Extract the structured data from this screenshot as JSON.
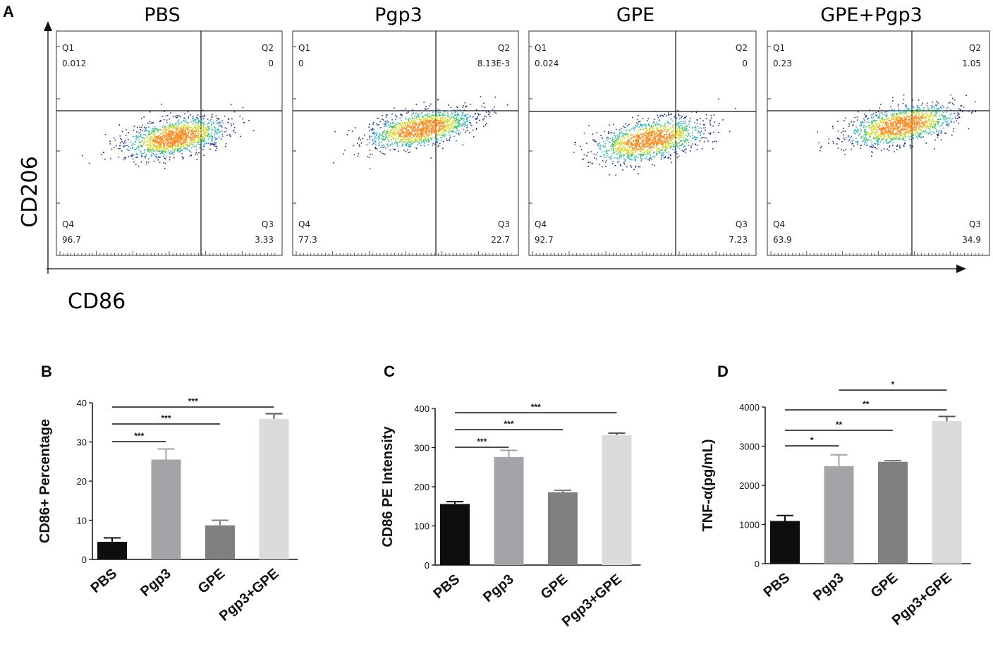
{
  "panel_a": {
    "label": "A",
    "y_axis_label": "CD206",
    "x_axis_label": "CD86",
    "plots": [
      {
        "title": "PBS",
        "q1_label": "Q1",
        "q1": "0.012",
        "q2_label": "Q2",
        "q2": "0",
        "q3_label": "Q3",
        "q3": "3.33",
        "q4_label": "Q4",
        "q4": "96.7"
      },
      {
        "title": "Pgp3",
        "q1_label": "Q1",
        "q1": "0",
        "q2_label": "Q2",
        "q2": "8.13E-3",
        "q3_label": "Q3",
        "q3": "22.7",
        "q4_label": "Q4",
        "q4": "77.3"
      },
      {
        "title": "GPE",
        "q1_label": "Q1",
        "q1": "0.024",
        "q2_label": "Q2",
        "q2": "0",
        "q3_label": "Q3",
        "q3": "7.23",
        "q4_label": "Q4",
        "q4": "92.7"
      },
      {
        "title": "GPE+Pgp3",
        "q1_label": "Q1",
        "q1": "0.23",
        "q2_label": "Q2",
        "q2": "1.05",
        "q3_label": "Q3",
        "q3": "34.9",
        "q4_label": "Q4",
        "q4": "63.9"
      }
    ]
  },
  "colors": {
    "bar_PBS": "#0d0f0f",
    "bar_Pgp3": "#a3a3a8",
    "bar_GPE": "#808080",
    "bar_Pgp3GPE": "#dbdbdb",
    "density": [
      "#1d2a8f",
      "#2f6fd1",
      "#2bb5c9",
      "#35c46a",
      "#d7d92b",
      "#ff8a1c",
      "#e3281a"
    ]
  },
  "chart_data": [
    {
      "panel": "B",
      "type": "bar",
      "title": "",
      "xlabel": "",
      "ylabel": "CD86+ Percentage",
      "categories": [
        "PBS",
        "Pgp3",
        "GPE",
        "Pgp3+GPE"
      ],
      "values": [
        4.5,
        25.5,
        8.7,
        35.9
      ],
      "errors": [
        1.0,
        2.7,
        1.3,
        1.3
      ],
      "ylim": [
        0,
        40
      ],
      "yticks": [
        0,
        10,
        20,
        30,
        40
      ],
      "significance": [
        {
          "from": 0,
          "to": 1,
          "label": "***"
        },
        {
          "from": 0,
          "to": 2,
          "label": "***"
        },
        {
          "from": 0,
          "to": 3,
          "label": "***"
        }
      ]
    },
    {
      "panel": "C",
      "type": "bar",
      "title": "",
      "xlabel": "",
      "ylabel": "CD86 PE  Intensity",
      "categories": [
        "PBS",
        "Pgp3",
        "GPE",
        "Pgp3+GPE"
      ],
      "values": [
        156,
        276,
        186,
        332
      ],
      "errors": [
        6,
        17,
        5,
        5
      ],
      "ylim": [
        0,
        400
      ],
      "yticks": [
        0,
        100,
        200,
        300,
        400
      ],
      "significance": [
        {
          "from": 0,
          "to": 1,
          "label": "***"
        },
        {
          "from": 0,
          "to": 2,
          "label": "***"
        },
        {
          "from": 0,
          "to": 3,
          "label": "***"
        }
      ]
    },
    {
      "panel": "D",
      "type": "bar",
      "title": "",
      "xlabel": "",
      "ylabel": "TNF-α(pg/mL)",
      "categories": [
        "PBS",
        "Pgp3",
        "GPE",
        "Pgp3+GPE"
      ],
      "values": [
        1090,
        2490,
        2600,
        3640
      ],
      "errors": [
        140,
        290,
        30,
        120
      ],
      "ylim": [
        0,
        4000
      ],
      "yticks": [
        0,
        1000,
        2000,
        3000,
        4000
      ],
      "significance": [
        {
          "from": 0,
          "to": 1,
          "label": "*"
        },
        {
          "from": 0,
          "to": 2,
          "label": "**"
        },
        {
          "from": 0,
          "to": 3,
          "label": "**"
        },
        {
          "from": 1,
          "to": 3,
          "label": "*"
        }
      ]
    }
  ]
}
